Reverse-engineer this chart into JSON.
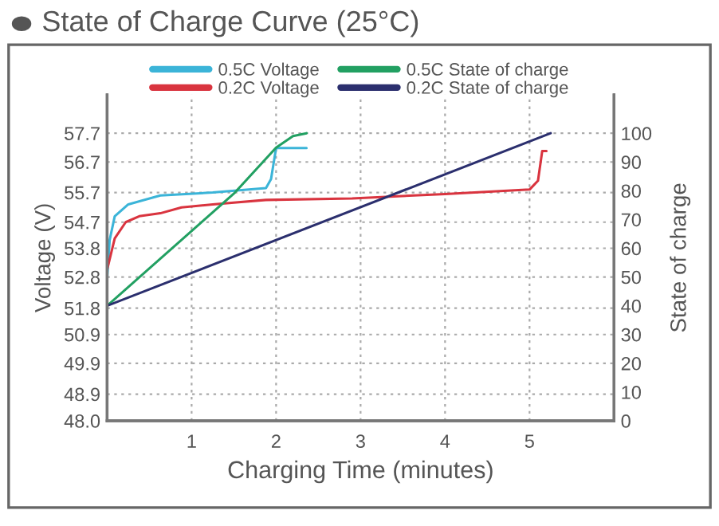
{
  "chart_data": {
    "type": "line",
    "title": "State of Charge Curve (25°C)",
    "xlabel": "Charging Time (minutes)",
    "ylabel": "Voltage (V)",
    "y2label": "State of charge",
    "xlim": [
      0,
      6
    ],
    "xticks": [
      1,
      2,
      3,
      4,
      5
    ],
    "ylim": [
      48.0,
      59.0
    ],
    "yticks": [
      {
        "value": 48.0,
        "label": "48.0"
      },
      {
        "value": 48.9,
        "label": "48.9"
      },
      {
        "value": 49.94,
        "label": "49.9"
      },
      {
        "value": 50.91,
        "label": "50.9"
      },
      {
        "value": 51.8,
        "label": "51.8"
      },
      {
        "value": 52.85,
        "label": "52.8"
      },
      {
        "value": 53.82,
        "label": "53.8"
      },
      {
        "value": 54.7,
        "label": "54.7"
      },
      {
        "value": 55.7,
        "label": "55.7"
      },
      {
        "value": 56.73,
        "label": "56.7"
      },
      {
        "value": 57.7,
        "label": "57.7"
      }
    ],
    "y2lim": [
      0,
      113.4
    ],
    "y2ticks": [
      0,
      10,
      20,
      30,
      40,
      50,
      60,
      70,
      80,
      90,
      100
    ],
    "grid": true,
    "legend": "top",
    "line_style": "solid",
    "marker": "none",
    "series": [
      {
        "name": "0.5C Voltage",
        "color": "#3bb4d8",
        "x": [
          0,
          0.03,
          0.09,
          0.25,
          0.63,
          1.25,
          1.88,
          1.94,
          2.0,
          2.36
        ],
        "values": [
          52.8,
          54.1,
          54.9,
          55.3,
          55.6,
          55.7,
          55.85,
          56.15,
          57.2,
          57.2
        ]
      },
      {
        "name": "0.2C Voltage",
        "color": "#d9343f",
        "x": [
          0,
          0.09,
          0.22,
          0.38,
          0.63,
          0.88,
          1.25,
          1.88,
          2.9,
          4.0,
          5.0,
          5.1,
          5.15,
          5.2
        ],
        "values": [
          53.1,
          54.15,
          54.7,
          54.9,
          55.0,
          55.2,
          55.3,
          55.45,
          55.5,
          55.65,
          55.8,
          56.1,
          57.1,
          57.1
        ]
      },
      {
        "name": "0.5C State of charge",
        "color": "#22a062",
        "axis": "y2",
        "x": [
          0,
          1.5,
          2.0,
          2.2,
          2.36
        ],
        "values": [
          40,
          79,
          95,
          99,
          100
        ]
      },
      {
        "name": "0.2C State of charge",
        "color": "#2b2f6e",
        "axis": "y2",
        "x": [
          0,
          5.25
        ],
        "values": [
          40,
          100
        ]
      }
    ]
  }
}
